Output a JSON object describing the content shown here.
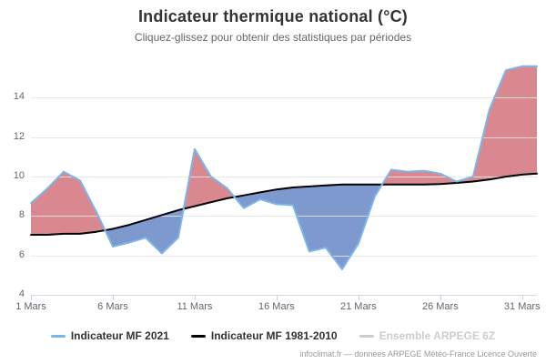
{
  "header": {
    "title": "Indicateur thermique national (°C)",
    "subtitle": "Cliquez-glissez pour obtenir des statistiques par périodes"
  },
  "credits": "infoclimat.fr — données ARPEGE Météo-France Licence Ouverte",
  "legend": {
    "items": [
      {
        "label": "Indicateur MF 2021",
        "color": "#7cb5ec",
        "enabled": true
      },
      {
        "label": "Indicateur MF 1981-2010",
        "color": "#000000",
        "enabled": true
      },
      {
        "label": "Ensemble ARPEGE 6Z",
        "color": "#cccccc",
        "enabled": false
      }
    ]
  },
  "chart_data": {
    "type": "line",
    "title": "Indicateur thermique national (°C)",
    "subtitle": "Cliquez-glissez pour obtenir des statistiques par périodes",
    "x_unit": "jour de Mars 2021",
    "x": [
      1,
      2,
      3,
      4,
      5,
      6,
      7,
      8,
      9,
      10,
      11,
      12,
      13,
      14,
      15,
      16,
      17,
      18,
      19,
      20,
      21,
      22,
      23,
      24,
      25,
      26,
      27,
      28,
      29,
      30,
      31,
      31.9
    ],
    "x_tick_days": [
      1,
      6,
      11,
      16,
      21,
      26,
      31
    ],
    "x_tick_labels": [
      "1 Mars",
      "6 Mars",
      "11 Mars",
      "16 Mars",
      "21 Mars",
      "26 Mars",
      "31 Mars"
    ],
    "y_ticks": [
      4,
      6,
      8,
      10,
      12,
      14
    ],
    "xlim": [
      1,
      31.9
    ],
    "ylim": [
      4,
      16.1
    ],
    "grid": "horizontal",
    "legend_position": "bottom",
    "series": [
      {
        "name": "Indicateur MF 2021",
        "color": "#7cb5ec",
        "values": [
          8.65,
          9.4,
          10.25,
          9.8,
          8.2,
          6.45,
          6.65,
          6.9,
          6.1,
          6.9,
          11.4,
          10.0,
          9.4,
          8.4,
          8.85,
          8.6,
          8.55,
          6.2,
          6.4,
          5.3,
          6.6,
          9.0,
          10.35,
          10.25,
          10.3,
          10.15,
          9.75,
          10.0,
          13.4,
          15.4,
          15.6,
          15.6
        ]
      },
      {
        "name": "Indicateur MF 1981-2010",
        "color": "#000000",
        "values": [
          7.05,
          7.05,
          7.1,
          7.1,
          7.2,
          7.35,
          7.55,
          7.8,
          8.05,
          8.3,
          8.5,
          8.7,
          8.9,
          9.05,
          9.2,
          9.35,
          9.45,
          9.5,
          9.55,
          9.6,
          9.6,
          9.6,
          9.6,
          9.6,
          9.6,
          9.62,
          9.68,
          9.75,
          9.85,
          10.0,
          10.1,
          10.15
        ]
      }
    ],
    "fill_above_color": "#d8888e",
    "fill_below_color": "#7d99ce",
    "axis_line_color": "#ccd6eb",
    "gridline_color": "#e6e6e6"
  }
}
